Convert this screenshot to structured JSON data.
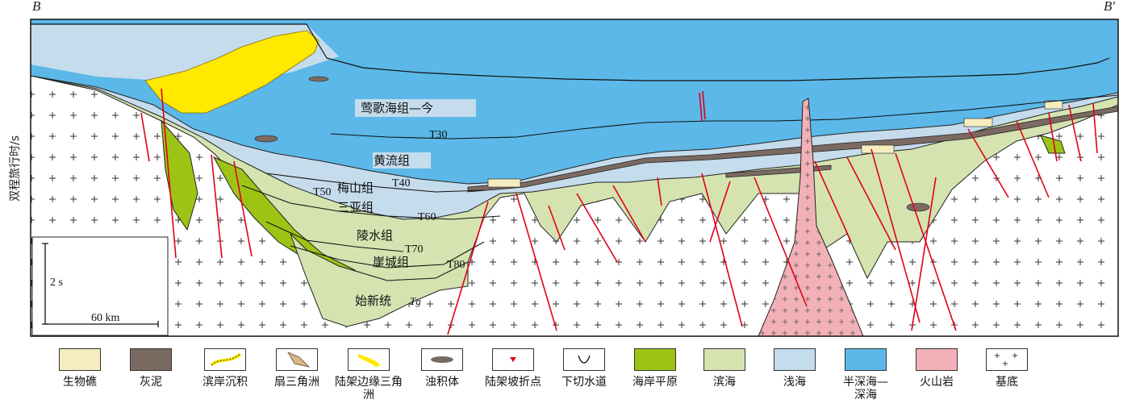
{
  "corner_left": "B",
  "corner_right": "B′",
  "y_axis_label": "双程旅行时/s",
  "section_labels": {
    "yinggehai": "莺歌海组—今",
    "t30": "T30",
    "huangliu": "黄流组",
    "t40": "T40",
    "t50": "T50",
    "meishan": "梅山组",
    "sanya": "三亚组",
    "t60": "T60",
    "lingshui": "陵水组",
    "t70": "T70",
    "yacheng": "崖城组",
    "t80": "T80",
    "eocene": "始新统",
    "tg": "Tg"
  },
  "scale": {
    "vertical": "2 s",
    "horizontal": "60 km"
  },
  "colors": {
    "semi_deep": "#5bb8e8",
    "shallow": "#c5dcec",
    "littoral": "#d5e3b0",
    "coastal_plain": "#9dc415",
    "mud": "#7b6a62",
    "volcanic": "#f2b1b6",
    "basement": "#ffffff",
    "fault": "#e0001b",
    "shelf_delta": "#ffe900",
    "reef": "#f5edc0"
  },
  "legend": [
    {
      "label": "生物礁",
      "icon": "reef-swatch"
    },
    {
      "label": "灰泥",
      "icon": "mud-swatch"
    },
    {
      "label": "滨岸沉积",
      "icon": "shore-deposit-swatch"
    },
    {
      "label": "扇三角洲",
      "icon": "fan-delta-swatch"
    },
    {
      "label": "陆架边缘三角洲",
      "icon": "shelf-margin-delta-swatch"
    },
    {
      "label": "浊积体",
      "icon": "turbidite-swatch"
    },
    {
      "label": "陆架坡折点",
      "icon": "shelf-break-swatch"
    },
    {
      "label": "下切水道",
      "icon": "incised-channel-swatch"
    },
    {
      "label": "海岸平原",
      "icon": "coastal-plain-swatch"
    },
    {
      "label": "滨海",
      "icon": "littoral-swatch"
    },
    {
      "label": "浅海",
      "icon": "shallow-sea-swatch"
    },
    {
      "label": "半深海—深海",
      "icon": "bathyal-abyssal-swatch"
    },
    {
      "label": "火山岩",
      "icon": "volcanic-rock-swatch"
    },
    {
      "label": "基底",
      "icon": "basement-swatch"
    }
  ]
}
